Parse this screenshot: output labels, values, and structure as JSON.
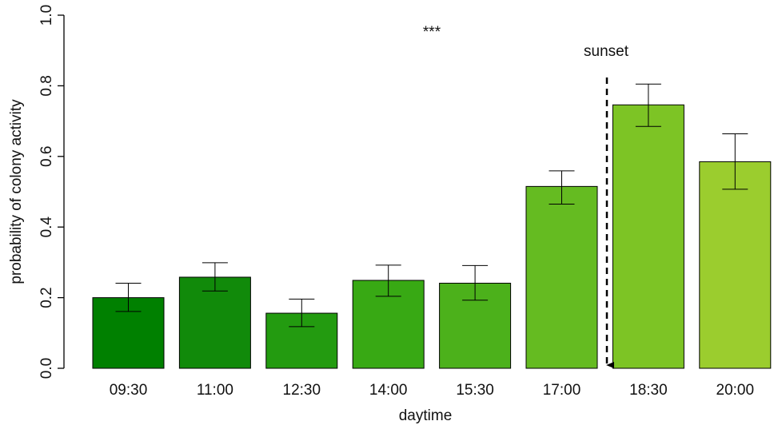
{
  "chart_data": {
    "type": "bar",
    "xlabel": "daytime",
    "ylabel": "probability of colony activity",
    "ylim": [
      0,
      1
    ],
    "yticks": [
      "0.0",
      "0.2",
      "0.4",
      "0.6",
      "0.8",
      "1.0"
    ],
    "categories": [
      "09:30",
      "11:00",
      "12:30",
      "14:00",
      "15:30",
      "17:00",
      "18:30",
      "20:00"
    ],
    "values": [
      0.2,
      0.258,
      0.156,
      0.249,
      0.241,
      0.515,
      0.746,
      0.585
    ],
    "error_low": [
      0.161,
      0.219,
      0.118,
      0.204,
      0.193,
      0.465,
      0.685,
      0.507
    ],
    "error_high": [
      0.241,
      0.299,
      0.196,
      0.292,
      0.291,
      0.559,
      0.805,
      0.664
    ],
    "bar_colors": [
      "#008000",
      "#118a0a",
      "#239b10",
      "#38a914",
      "#4cb11b",
      "#65bb21",
      "#7dc425",
      "#9bcd2e"
    ],
    "annotations": {
      "significance": "***",
      "sunset_label": "sunset",
      "sunset_position": "between 17:00 and 18:30"
    },
    "grid": false,
    "legend": "none"
  }
}
